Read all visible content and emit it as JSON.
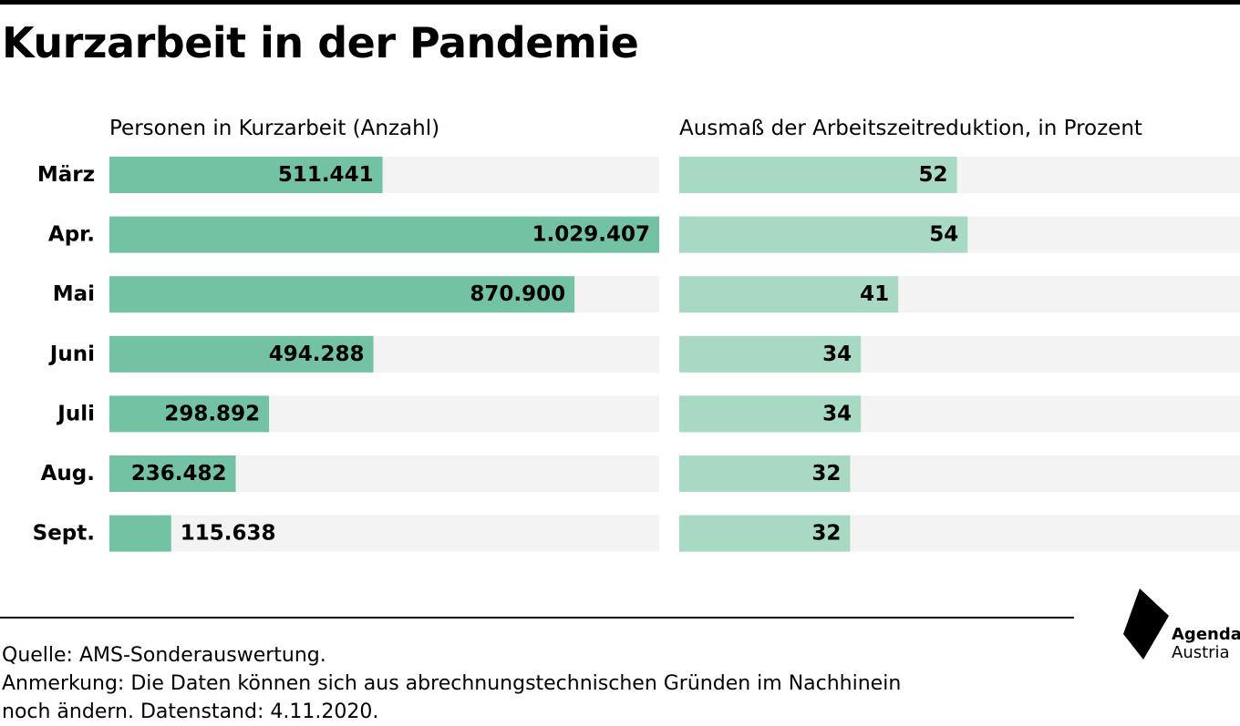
{
  "title": "Kurzarbeit in der Pandemie",
  "colors": {
    "bar_left": "#73c2a4",
    "bar_right": "#a8d9c3",
    "track": "#f3f3f3",
    "rule": "#000000"
  },
  "chart_data": [
    {
      "type": "bar",
      "orientation": "horizontal",
      "title": "Personen in Kurzarbeit (Anzahl)",
      "categories": [
        "März",
        "Apr.",
        "Mai",
        "Juni",
        "Juli",
        "Aug.",
        "Sept."
      ],
      "values": [
        511441,
        1029407,
        870900,
        494288,
        298892,
        236482,
        115638
      ],
      "value_labels": [
        "511.441",
        "1.029.407",
        "870.900",
        "494.288",
        "298.892",
        "236.482",
        "115.638"
      ],
      "xlim": [
        0,
        1029407
      ]
    },
    {
      "type": "bar",
      "orientation": "horizontal",
      "title": "Ausmaß der Arbeitszeitreduktion, in Prozent",
      "categories": [
        "März",
        "Apr.",
        "Mai",
        "Juni",
        "Juli",
        "Aug.",
        "Sept."
      ],
      "values": [
        52,
        54,
        41,
        34,
        34,
        32,
        32
      ],
      "value_labels": [
        "52",
        "54",
        "41",
        "34",
        "34",
        "32",
        "32"
      ],
      "xlim": [
        0,
        105
      ]
    }
  ],
  "footer": {
    "source": "Quelle: AMS-Sonderauswertung.",
    "note_line1": "Anmerkung: Die Daten können sich aus abrechnungstechnischen Gründen im Nachhinein",
    "note_line2": "noch ändern. Datenstand: 4.11.2020."
  },
  "logo": {
    "line1": "Agenda",
    "line2": "Austria"
  }
}
